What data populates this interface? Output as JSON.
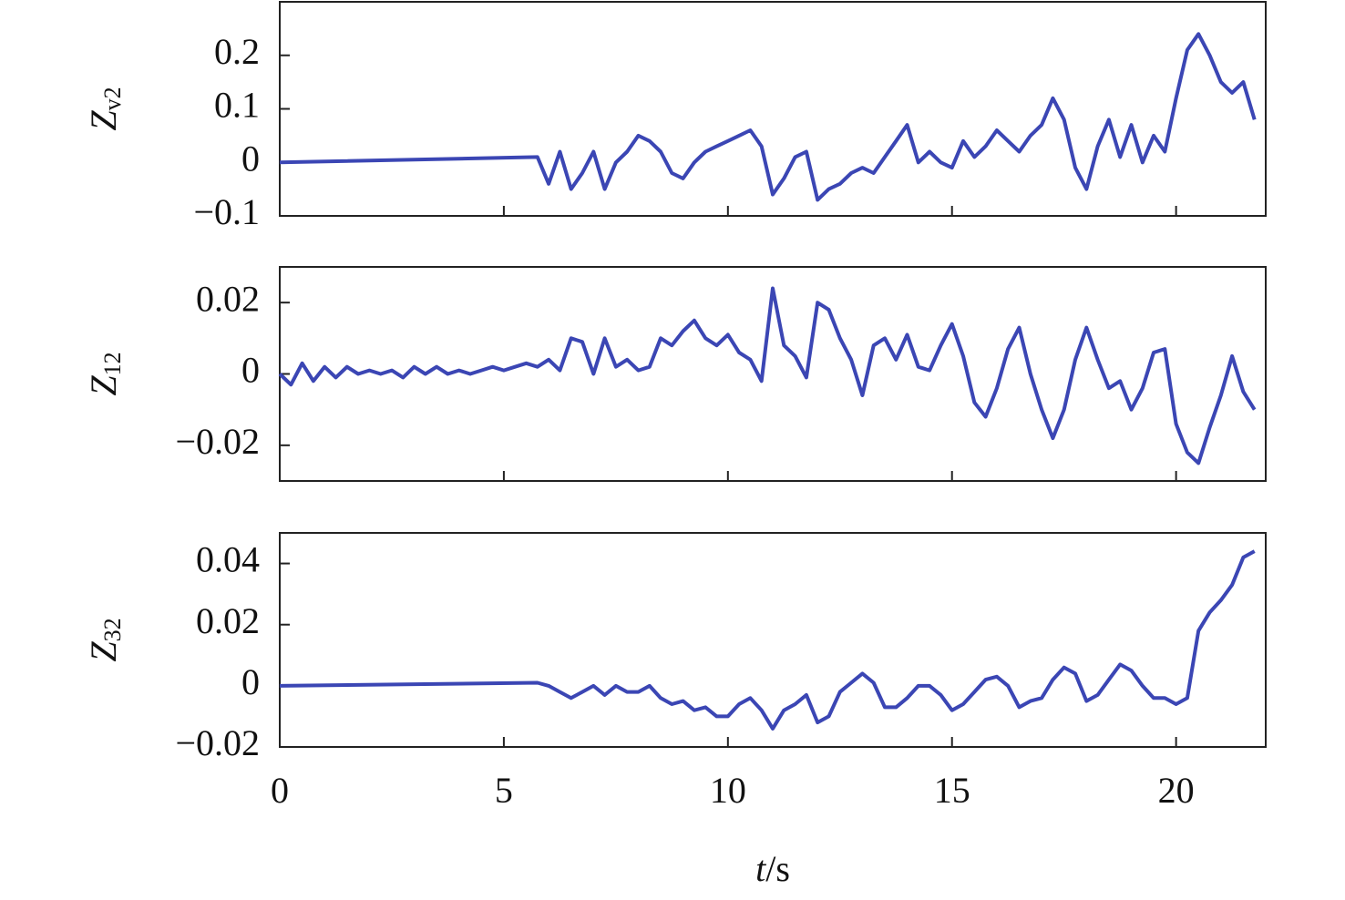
{
  "chart_data": [
    {
      "type": "line",
      "ylabel": [
        "Z",
        "v2"
      ],
      "color": "#3b46b4",
      "xlim": [
        0,
        22
      ],
      "xticks": [
        0,
        5,
        10,
        15,
        20
      ],
      "ylim": [
        -0.1,
        0.3
      ],
      "yticks": [
        {
          "value": -0.1,
          "label": "−0.1"
        },
        0,
        0.1,
        0.2
      ],
      "x": [
        0,
        5.75,
        6,
        6.25,
        6.5,
        6.75,
        7,
        7.25,
        7.5,
        7.75,
        8,
        8.25,
        8.5,
        8.75,
        9,
        9.25,
        9.5,
        9.75,
        10,
        10.25,
        10.5,
        10.75,
        11,
        11.25,
        11.5,
        11.75,
        12,
        12.25,
        12.5,
        12.75,
        13,
        13.25,
        13.5,
        13.75,
        14,
        14.25,
        14.5,
        14.75,
        15,
        15.25,
        15.5,
        15.75,
        16,
        16.25,
        16.5,
        16.75,
        17,
        17.25,
        17.5,
        17.75,
        18,
        18.25,
        18.5,
        18.75,
        19,
        19.25,
        19.5,
        19.75,
        20,
        20.25,
        20.5,
        20.75,
        21,
        21.25,
        21.5,
        21.75
      ],
      "values": [
        0,
        0.01,
        -0.04,
        0.02,
        -0.05,
        -0.02,
        0.02,
        -0.05,
        0,
        0.02,
        0.05,
        0.04,
        0.02,
        -0.02,
        -0.03,
        0,
        0.02,
        0.03,
        0.04,
        0.05,
        0.06,
        0.03,
        -0.06,
        -0.03,
        0.01,
        0.02,
        -0.07,
        -0.05,
        -0.04,
        -0.02,
        -0.01,
        -0.02,
        0.01,
        0.04,
        0.07,
        0,
        0.02,
        0,
        -0.01,
        0.04,
        0.01,
        0.03,
        0.06,
        0.04,
        0.02,
        0.05,
        0.07,
        0.12,
        0.08,
        -0.01,
        -0.05,
        0.03,
        0.08,
        0.01,
        0.07,
        0,
        0.05,
        0.02,
        0.12,
        0.21,
        0.24,
        0.2,
        0.15,
        0.13,
        0.15,
        0.08
      ]
    },
    {
      "type": "line",
      "ylabel": [
        "Z",
        "12"
      ],
      "color": "#3b46b4",
      "xlim": [
        0,
        22
      ],
      "xticks": [
        0,
        5,
        10,
        15,
        20
      ],
      "ylim": [
        -0.03,
        0.03
      ],
      "yticks": [
        {
          "value": -0.02,
          "label": "−0.02"
        },
        0,
        0.02
      ],
      "x": [
        0,
        0.25,
        0.5,
        0.75,
        1,
        1.25,
        1.5,
        1.75,
        2,
        2.25,
        2.5,
        2.75,
        3,
        3.25,
        3.5,
        3.75,
        4,
        4.25,
        4.5,
        4.75,
        5,
        5.25,
        5.5,
        5.75,
        6,
        6.25,
        6.5,
        6.75,
        7,
        7.25,
        7.5,
        7.75,
        8,
        8.25,
        8.5,
        8.75,
        9,
        9.25,
        9.5,
        9.75,
        10,
        10.25,
        10.5,
        10.75,
        11,
        11.25,
        11.5,
        11.75,
        12,
        12.25,
        12.5,
        12.75,
        13,
        13.25,
        13.5,
        13.75,
        14,
        14.25,
        14.5,
        14.75,
        15,
        15.25,
        15.5,
        15.75,
        16,
        16.25,
        16.5,
        16.75,
        17,
        17.25,
        17.5,
        17.75,
        18,
        18.25,
        18.5,
        18.75,
        19,
        19.25,
        19.5,
        19.75,
        20,
        20.25,
        20.5,
        20.75,
        21,
        21.25,
        21.5,
        21.75
      ],
      "values": [
        0,
        -0.003,
        0.003,
        -0.002,
        0.002,
        -0.001,
        0.002,
        0,
        0.001,
        0,
        0.001,
        -0.001,
        0.002,
        0,
        0.002,
        0,
        0.001,
        0,
        0.001,
        0.002,
        0.001,
        0.002,
        0.003,
        0.002,
        0.004,
        0.001,
        0.01,
        0.009,
        0,
        0.01,
        0.002,
        0.004,
        0.001,
        0.002,
        0.01,
        0.008,
        0.012,
        0.015,
        0.01,
        0.008,
        0.011,
        0.006,
        0.004,
        -0.002,
        0.024,
        0.008,
        0.005,
        -0.001,
        0.02,
        0.018,
        0.01,
        0.004,
        -0.006,
        0.008,
        0.01,
        0.004,
        0.011,
        0.002,
        0.001,
        0.008,
        0.014,
        0.005,
        -0.008,
        -0.012,
        -0.004,
        0.007,
        0.013,
        0,
        -0.01,
        -0.018,
        -0.01,
        0.004,
        0.013,
        0.004,
        -0.004,
        -0.002,
        -0.01,
        -0.004,
        0.006,
        0.007,
        -0.014,
        -0.022,
        -0.025,
        -0.015,
        -0.006,
        0.005,
        -0.005,
        -0.01
      ]
    },
    {
      "type": "line",
      "ylabel": [
        "Z",
        "32"
      ],
      "xlabel": [
        "t",
        "/s"
      ],
      "color": "#3b46b4",
      "xlim": [
        0,
        22
      ],
      "xticks": [
        0,
        5,
        10,
        15,
        20
      ],
      "ylim": [
        -0.02,
        0.05
      ],
      "yticks": [
        {
          "value": -0.02,
          "label": "−0.02"
        },
        0,
        0.02,
        0.04
      ],
      "x": [
        0,
        5.75,
        6,
        6.25,
        6.5,
        6.75,
        7,
        7.25,
        7.5,
        7.75,
        8,
        8.25,
        8.5,
        8.75,
        9,
        9.25,
        9.5,
        9.75,
        10,
        10.25,
        10.5,
        10.75,
        11,
        11.25,
        11.5,
        11.75,
        12,
        12.25,
        12.5,
        12.75,
        13,
        13.25,
        13.5,
        13.75,
        14,
        14.25,
        14.5,
        14.75,
        15,
        15.25,
        15.5,
        15.75,
        16,
        16.25,
        16.5,
        16.75,
        17,
        17.25,
        17.5,
        17.75,
        18,
        18.25,
        18.5,
        18.75,
        19,
        19.25,
        19.5,
        19.75,
        20,
        20.25,
        20.5,
        20.75,
        21,
        21.25,
        21.5,
        21.75
      ],
      "values": [
        0,
        0.001,
        0,
        -0.002,
        -0.004,
        -0.002,
        0,
        -0.003,
        0,
        -0.002,
        -0.002,
        0,
        -0.004,
        -0.006,
        -0.005,
        -0.008,
        -0.007,
        -0.01,
        -0.01,
        -0.006,
        -0.004,
        -0.008,
        -0.014,
        -0.008,
        -0.006,
        -0.003,
        -0.012,
        -0.01,
        -0.002,
        0.001,
        0.004,
        0.001,
        -0.007,
        -0.007,
        -0.004,
        0,
        0,
        -0.003,
        -0.008,
        -0.006,
        -0.002,
        0.002,
        0.003,
        0,
        -0.007,
        -0.005,
        -0.004,
        0.002,
        0.006,
        0.004,
        -0.005,
        -0.003,
        0.002,
        0.007,
        0.005,
        0,
        -0.004,
        -0.004,
        -0.006,
        -0.004,
        0.018,
        0.024,
        0.028,
        0.033,
        0.042,
        0.044
      ]
    }
  ]
}
